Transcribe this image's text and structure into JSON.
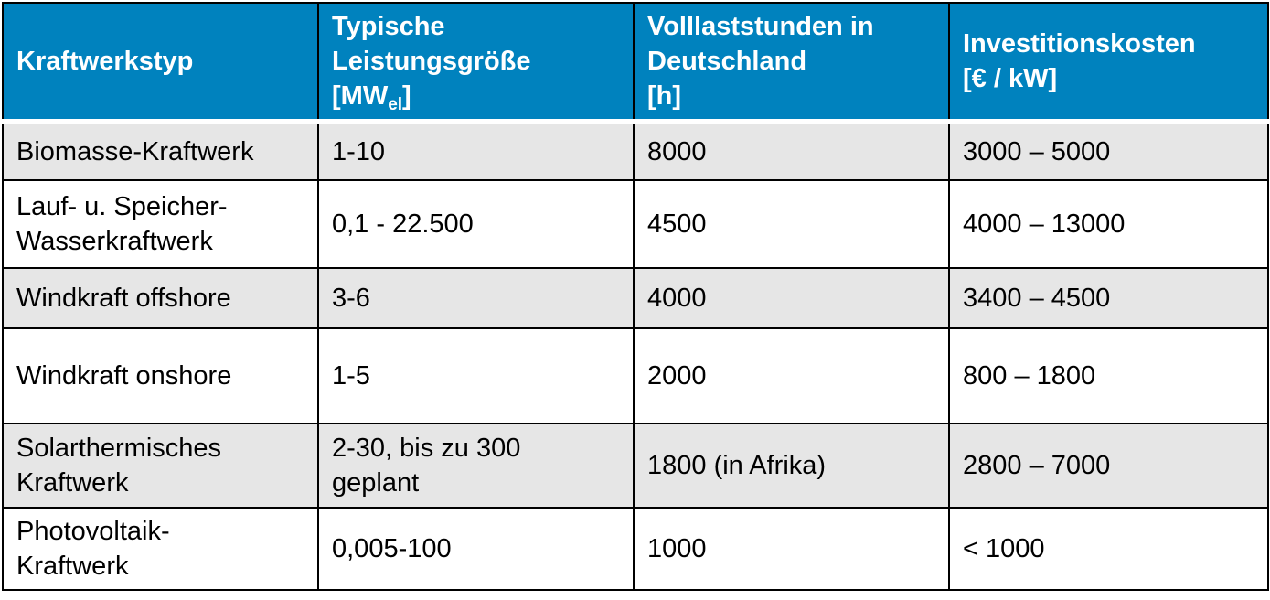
{
  "table": {
    "headers": [
      {
        "line1": "Kraftwerkstyp"
      },
      {
        "line1": "Typische",
        "line2": "Leistungsgröße",
        "unit_prefix": "[MW",
        "unit_sub": "el",
        "unit_suffix": "]"
      },
      {
        "line1": "Volllaststunden in",
        "line2": "Deutschland",
        "line3": "[h]"
      },
      {
        "line1": "Investitionskosten",
        "line2": "[€ / kW]"
      }
    ],
    "rows": [
      {
        "type_l1": "Biomasse-Kraftwerk",
        "type_l2": "",
        "size_l1": "1-10",
        "size_l2": "",
        "hours": "8000",
        "cost": "3000 – 5000"
      },
      {
        "type_l1": "Lauf- u. Speicher-",
        "type_l2": "Wasserkraftwerk",
        "size_l1": "0,1 - 22.500",
        "size_l2": "",
        "hours": "4500",
        "cost": "4000 – 13000"
      },
      {
        "type_l1": "Windkraft offshore",
        "type_l2": "",
        "size_l1": "3-6",
        "size_l2": "",
        "hours": "4000",
        "cost": "3400 – 4500"
      },
      {
        "type_l1": "Windkraft onshore",
        "type_l2": "",
        "size_l1": "1-5",
        "size_l2": "",
        "hours": "2000",
        "cost": "800 – 1800"
      },
      {
        "type_l1": "Solarthermisches",
        "type_l2": "Kraftwerk",
        "size_l1": "2-30, bis zu 300",
        "size_l2": "geplant",
        "hours": "1800 (in Afrika)",
        "cost": "2800 – 7000"
      },
      {
        "type_l1": "Photovoltaik-",
        "type_l2": "Kraftwerk",
        "size_l1": "0,005-100",
        "size_l2": "",
        "hours": "1000",
        "cost": "< 1000"
      }
    ]
  }
}
